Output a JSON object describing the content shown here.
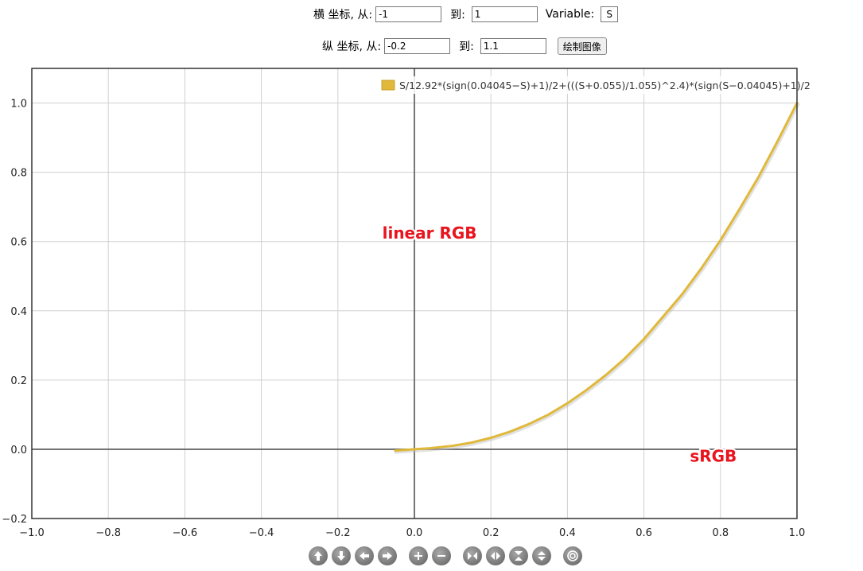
{
  "controls": {
    "x_label": "横 坐标, 从:",
    "x_from": "-1",
    "x_to_label": "到:",
    "x_to": "1",
    "variable_label": "Variable:",
    "variable": "S",
    "y_label": "纵 坐标, 从:",
    "y_from": "-0.2",
    "y_to_label": "到:",
    "y_to": "1.1",
    "draw_button": "绘制图像"
  },
  "chart_data": {
    "type": "line",
    "xlim": [
      -1,
      1.0
    ],
    "ylim": [
      -0.2,
      1.1
    ],
    "x_ticks": [
      -1.0,
      -0.8,
      -0.6,
      -0.4,
      -0.2,
      0.0,
      0.2,
      0.4,
      0.6,
      0.8,
      1.0
    ],
    "y_ticks": [
      -0.2,
      0.0,
      0.2,
      0.4,
      0.6,
      0.8,
      1.0
    ],
    "x_tick_labels": [
      "−1.0",
      "−0.8",
      "−0.6",
      "−0.4",
      "−0.2",
      "0.0",
      "0.2",
      "0.4",
      "0.6",
      "0.8",
      "1.0"
    ],
    "y_tick_labels": [
      "−0.2",
      "0.0",
      "0.2",
      "0.4",
      "0.6",
      "0.8",
      "1.0"
    ],
    "grid": true,
    "legend": "top-right",
    "series": [
      {
        "name": "S/12.92*(sign(0.04045−S)+1)/2+(((S+0.055)/1.055)^2.4)*(sign(S−0.04045)+1)/2",
        "color": "#e0b83a",
        "x": [
          -0.05,
          -0.02,
          0.0,
          0.04045,
          0.1,
          0.15,
          0.2,
          0.25,
          0.3,
          0.35,
          0.4,
          0.45,
          0.5,
          0.55,
          0.6,
          0.65,
          0.7,
          0.75,
          0.8,
          0.85,
          0.9,
          0.95,
          1.0
        ],
        "y": [
          -0.0039,
          -0.0015,
          0.0,
          0.0031,
          0.01,
          0.0194,
          0.0331,
          0.0509,
          0.0732,
          0.0999,
          0.1329,
          0.1714,
          0.214,
          0.2623,
          0.3185,
          0.3831,
          0.4479,
          0.5225,
          0.6038,
          0.6939,
          0.7874,
          0.8913,
          1.0
        ]
      }
    ],
    "annotations": [
      {
        "text": "linear RGB",
        "x": 0.02,
        "y": 0.625,
        "color": "#e8141e"
      },
      {
        "text": "sRGB",
        "x": 0.72,
        "y": -0.02,
        "color": "#e8141e"
      }
    ]
  },
  "nav_icons": [
    "pan-up-icon",
    "pan-down-icon",
    "pan-left-icon",
    "pan-right-icon",
    "zoom-in-icon",
    "zoom-out-icon",
    "shrink-x-icon",
    "expand-x-icon",
    "shrink-y-icon",
    "expand-y-icon",
    "reset-icon"
  ]
}
